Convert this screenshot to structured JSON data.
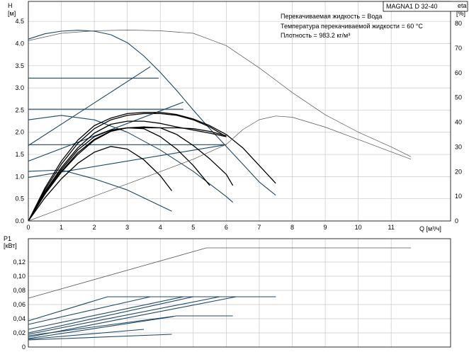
{
  "chart_data": [
    {
      "type": "line",
      "title": "MAGNA1 D 32-40",
      "info_lines": [
        "Перекачиваемая жидкость = Вода",
        "Температура перекачиваемой жидкости = 60 °C",
        "Плотность = 983.2 кг/м³"
      ],
      "xlabel": "Q [м³/ч]",
      "ylabel": "H",
      "ylabel_unit": "[м]",
      "y2label": "eta",
      "y2label_unit": "[%]",
      "xlim": [
        0,
        12.8
      ],
      "ylim": [
        0,
        4.95
      ],
      "y2lim": [
        0,
        88.9
      ],
      "xticks": [
        "0",
        "1",
        "2",
        "3",
        "4",
        "5",
        "6",
        "7",
        "8",
        "9",
        "10",
        "11"
      ],
      "yticks": [
        "0.0",
        "0.5",
        "1.0",
        "1.5",
        "2.0",
        "2.5",
        "3.0",
        "3.5",
        "4.0",
        "4.5"
      ],
      "y2ticks": [
        "0",
        "10",
        "20",
        "30",
        "40",
        "50",
        "60",
        "70",
        "80"
      ],
      "grid": true,
      "series": [
        {
          "name": "",
          "values": [
            [
              0,
              4.1
            ],
            [
              0.5,
              4.22
            ],
            [
              1.0,
              4.28
            ],
            [
              1.5,
              4.3
            ],
            [
              2.0,
              4.28
            ],
            [
              2.5,
              4.2
            ],
            [
              3.0,
              4.02
            ],
            [
              3.5,
              3.72
            ],
            [
              4.0,
              3.35
            ],
            [
              4.5,
              2.94
            ],
            [
              5.0,
              2.5
            ],
            [
              5.5,
              2.08
            ],
            [
              6.0,
              1.68
            ],
            [
              6.5,
              1.28
            ],
            [
              7.0,
              0.88
            ],
            [
              7.5,
              0.58
            ]
          ]
        },
        {
          "name": "",
          "values": [
            [
              0,
              3.22
            ],
            [
              3.95,
              3.22
            ]
          ]
        },
        {
          "name": "",
          "values": [
            [
              0,
              2.52
            ],
            [
              4.7,
              2.52
            ]
          ]
        },
        {
          "name": "",
          "values": [
            [
              0,
              1.72
            ],
            [
              6.0,
              1.72
            ]
          ]
        },
        {
          "name": "",
          "values": [
            [
              0,
              1.7
            ],
            [
              3.7,
              3.48
            ]
          ]
        },
        {
          "name": "",
          "values": [
            [
              0,
              1.35
            ],
            [
              4.7,
              2.68
            ]
          ]
        },
        {
          "name": "",
          "values": [
            [
              0,
              0.98
            ],
            [
              6.0,
              1.72
            ]
          ]
        },
        {
          "name": "",
          "values": [
            [
              0,
              2.28
            ],
            [
              1.0,
              2.38
            ],
            [
              2.0,
              2.28
            ],
            [
              3.0,
              2.0
            ],
            [
              4.0,
              1.6
            ],
            [
              5.0,
              1.12
            ],
            [
              6.0,
              0.55
            ],
            [
              6.2,
              0.42
            ]
          ]
        },
        {
          "name": "",
          "values": [
            [
              0,
              1.12
            ],
            [
              1.0,
              1.15
            ],
            [
              2.0,
              0.95
            ],
            [
              3.0,
              0.7
            ],
            [
              4.35,
              0.22
            ]
          ]
        },
        {
          "name": "",
          "values": [
            [
              0,
              0
            ],
            [
              0.5,
              0.52
            ],
            [
              1.0,
              0.95
            ],
            [
              1.5,
              1.3
            ],
            [
              2.0,
              1.55
            ],
            [
              2.5,
              1.68
            ],
            [
              3.0,
              1.62
            ],
            [
              3.5,
              1.38
            ],
            [
              4.0,
              1.02
            ],
            [
              4.35,
              0.68
            ]
          ]
        },
        {
          "name": "",
          "values": [
            [
              0,
              0
            ],
            [
              0.5,
              0.6
            ],
            [
              1.0,
              1.1
            ],
            [
              1.5,
              1.5
            ],
            [
              2.0,
              1.82
            ],
            [
              2.5,
              2.02
            ],
            [
              3.0,
              2.1
            ],
            [
              3.5,
              2.08
            ],
            [
              4.0,
              1.9
            ],
            [
              4.5,
              1.62
            ],
            [
              5.0,
              1.25
            ],
            [
              5.5,
              0.8
            ]
          ]
        },
        {
          "name": "",
          "values": [
            [
              0,
              0
            ],
            [
              0.5,
              0.62
            ],
            [
              1.0,
              1.12
            ],
            [
              1.5,
              1.54
            ],
            [
              2.0,
              1.84
            ],
            [
              2.5,
              2.03
            ],
            [
              3.0,
              2.1
            ],
            [
              3.5,
              2.12
            ],
            [
              4.0,
              2.1
            ],
            [
              4.5,
              1.95
            ],
            [
              5.0,
              1.7
            ],
            [
              5.5,
              1.4
            ],
            [
              6.0,
              1.05
            ],
            [
              6.2,
              0.8
            ]
          ]
        },
        {
          "name": "",
          "values": [
            [
              0,
              0
            ],
            [
              0.5,
              0.64
            ],
            [
              1.0,
              1.16
            ],
            [
              1.5,
              1.6
            ],
            [
              2.0,
              1.9
            ],
            [
              2.5,
              2.05
            ],
            [
              3.0,
              2.1
            ],
            [
              3.5,
              2.1
            ],
            [
              4.0,
              2.1
            ],
            [
              4.5,
              2.1
            ],
            [
              5.0,
              2.08
            ],
            [
              5.5,
              2.02
            ],
            [
              6.0,
              1.92
            ]
          ]
        },
        {
          "name": "",
          "values": [
            [
              0,
              0
            ],
            [
              0.5,
              0.66
            ],
            [
              1.0,
              1.2
            ],
            [
              1.5,
              1.65
            ],
            [
              2.0,
              1.98
            ],
            [
              2.5,
              2.18
            ],
            [
              3.0,
              2.25
            ],
            [
              3.5,
              2.25
            ],
            [
              4.0,
              2.2
            ],
            [
              4.5,
              2.12
            ],
            [
              5.0,
              2.05
            ],
            [
              5.5,
              1.98
            ],
            [
              6.0,
              1.9
            ]
          ]
        },
        {
          "name": "",
          "values": [
            [
              0,
              0
            ],
            [
              0.5,
              0.7
            ],
            [
              1.0,
              1.28
            ],
            [
              1.5,
              1.75
            ],
            [
              2.0,
              2.08
            ],
            [
              2.5,
              2.28
            ],
            [
              3.0,
              2.38
            ],
            [
              3.5,
              2.42
            ],
            [
              4.0,
              2.42
            ],
            [
              4.5,
              2.38
            ],
            [
              5.0,
              2.28
            ],
            [
              5.5,
              2.12
            ],
            [
              6.0,
              1.9
            ]
          ]
        },
        {
          "name": "",
          "values": [
            [
              0,
              0
            ],
            [
              0.5,
              0.74
            ],
            [
              1.0,
              1.35
            ],
            [
              1.5,
              1.82
            ],
            [
              2.0,
              2.15
            ],
            [
              2.5,
              2.32
            ],
            [
              3.0,
              2.42
            ],
            [
              3.5,
              2.45
            ],
            [
              4.0,
              2.45
            ],
            [
              4.5,
              2.4
            ],
            [
              5.0,
              2.3
            ],
            [
              5.5,
              2.15
            ],
            [
              6.0,
              1.95
            ],
            [
              6.5,
              1.65
            ],
            [
              7.0,
              1.25
            ],
            [
              7.5,
              0.85
            ]
          ]
        },
        {
          "name": "",
          "axis": "eta",
          "values": [
            [
              0,
              73
            ],
            [
              1,
              76
            ],
            [
              2,
              77
            ],
            [
              3,
              77.3
            ],
            [
              4,
              77
            ],
            [
              5,
              76
            ],
            [
              5.5,
              73.5
            ],
            [
              6,
              71
            ],
            [
              7,
              62
            ],
            [
              8,
              52
            ],
            [
              9,
              43
            ],
            [
              10,
              36
            ],
            [
              11,
              30
            ],
            [
              11.6,
              26
            ]
          ]
        },
        {
          "name": "",
          "axis": "eta",
          "values": [
            [
              0,
              0
            ],
            [
              1,
              5
            ],
            [
              2,
              10
            ],
            [
              3,
              15
            ],
            [
              4,
              20
            ],
            [
              5,
              25
            ],
            [
              6,
              31
            ],
            [
              6.5,
              37
            ],
            [
              7,
              41
            ],
            [
              7.5,
              42.5
            ],
            [
              8,
              42
            ],
            [
              9,
              38
            ],
            [
              10,
              33
            ],
            [
              11,
              28
            ],
            [
              11.6,
              25
            ]
          ]
        }
      ]
    },
    {
      "type": "line",
      "ylabel": "P1",
      "ylabel_unit": "[кВт]",
      "xlim": [
        0,
        12.8
      ],
      "ylim": [
        0,
        0.153
      ],
      "yticks": [
        "0",
        "0,02",
        "0,04",
        "0,06",
        "0,08",
        "0,10",
        "0,12"
      ],
      "grid": true,
      "series": [
        {
          "name": "",
          "values": [
            [
              0,
              0.069
            ],
            [
              5.4,
              0.14
            ],
            [
              11.6,
              0.14
            ]
          ]
        },
        {
          "name": "",
          "values": [
            [
              0,
              0.037
            ],
            [
              2.4,
              0.071
            ],
            [
              7.5,
              0.071
            ]
          ]
        },
        {
          "name": "",
          "values": [
            [
              0,
              0.032
            ],
            [
              3.7,
              0.071
            ],
            [
              7.5,
              0.071
            ]
          ]
        },
        {
          "name": "",
          "values": [
            [
              0,
              0.025
            ],
            [
              4.7,
              0.071
            ],
            [
              7.5,
              0.071
            ]
          ]
        },
        {
          "name": "",
          "values": [
            [
              0,
              0.02
            ],
            [
              5.0,
              0.071
            ],
            [
              7.5,
              0.071
            ]
          ]
        },
        {
          "name": "",
          "values": [
            [
              0,
              0.018
            ],
            [
              5.8,
              0.071
            ],
            [
              7.5,
              0.071
            ]
          ]
        },
        {
          "name": "",
          "values": [
            [
              0,
              0.014
            ],
            [
              6.3,
              0.071
            ],
            [
              7.5,
              0.071
            ]
          ]
        },
        {
          "name": "",
          "values": [
            [
              0,
              0.016
            ],
            [
              4.5,
              0.044
            ],
            [
              6.2,
              0.044
            ]
          ]
        },
        {
          "name": "",
          "values": [
            [
              0,
              0.012
            ],
            [
              4.4,
              0.043
            ]
          ]
        },
        {
          "name": "",
          "values": [
            [
              0,
              0.01
            ],
            [
              4.35,
              0.018
            ]
          ]
        },
        {
          "name": "",
          "values": [
            [
              0,
              0.011
            ],
            [
              2.5,
              0.021
            ],
            [
              3.5,
              0.025
            ]
          ]
        }
      ]
    }
  ]
}
